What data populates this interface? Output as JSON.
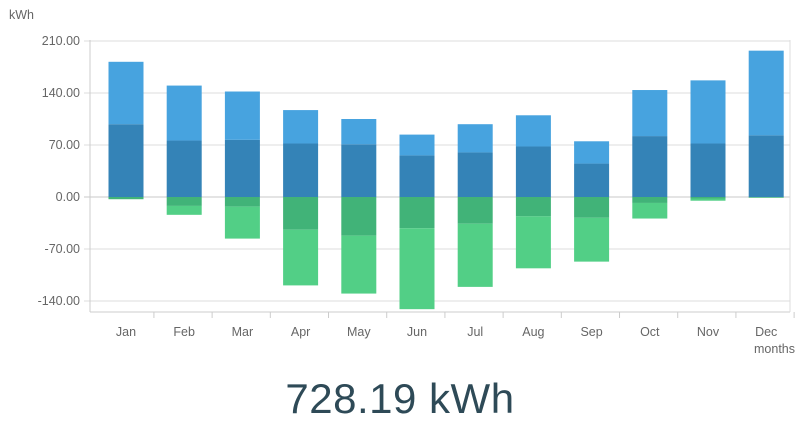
{
  "chart_data": {
    "type": "bar",
    "stacked": true,
    "ylabel": "kWh",
    "xlabel": "months",
    "categories": [
      "Jan",
      "Feb",
      "Mar",
      "Apr",
      "May",
      "Jun",
      "Jul",
      "Aug",
      "Sep",
      "Oct",
      "Nov",
      "Dec"
    ],
    "ylim": [
      -140,
      210
    ],
    "yticks": [
      "210.00",
      "140.00",
      "70.00",
      "0.00",
      "-70.00",
      "-140.00"
    ],
    "ytick_values": [
      210,
      140,
      70,
      0,
      -70,
      -140
    ],
    "grid": true,
    "series": [
      {
        "role": "positive-base",
        "color": "#3483b7",
        "values": [
          98,
          76,
          77,
          72,
          71,
          56,
          60,
          68,
          45,
          82,
          72,
          83
        ]
      },
      {
        "role": "positive-top",
        "color": "#47a3df",
        "values": [
          84,
          74,
          65,
          45,
          34,
          28,
          38,
          42,
          30,
          62,
          85,
          114
        ]
      },
      {
        "role": "negative-base",
        "color": "#41b378",
        "values": [
          -3,
          -12,
          -13,
          -44,
          -52,
          -42,
          -36,
          -26,
          -28,
          -8,
          -2,
          -1
        ]
      },
      {
        "role": "negative-bottom",
        "color": "#52cf86",
        "values": [
          0,
          -12,
          -43,
          -75,
          -78,
          -109,
          -85,
          -70,
          -59,
          -21,
          -3,
          0
        ]
      }
    ]
  },
  "total": {
    "value": "728.19 kWh"
  }
}
